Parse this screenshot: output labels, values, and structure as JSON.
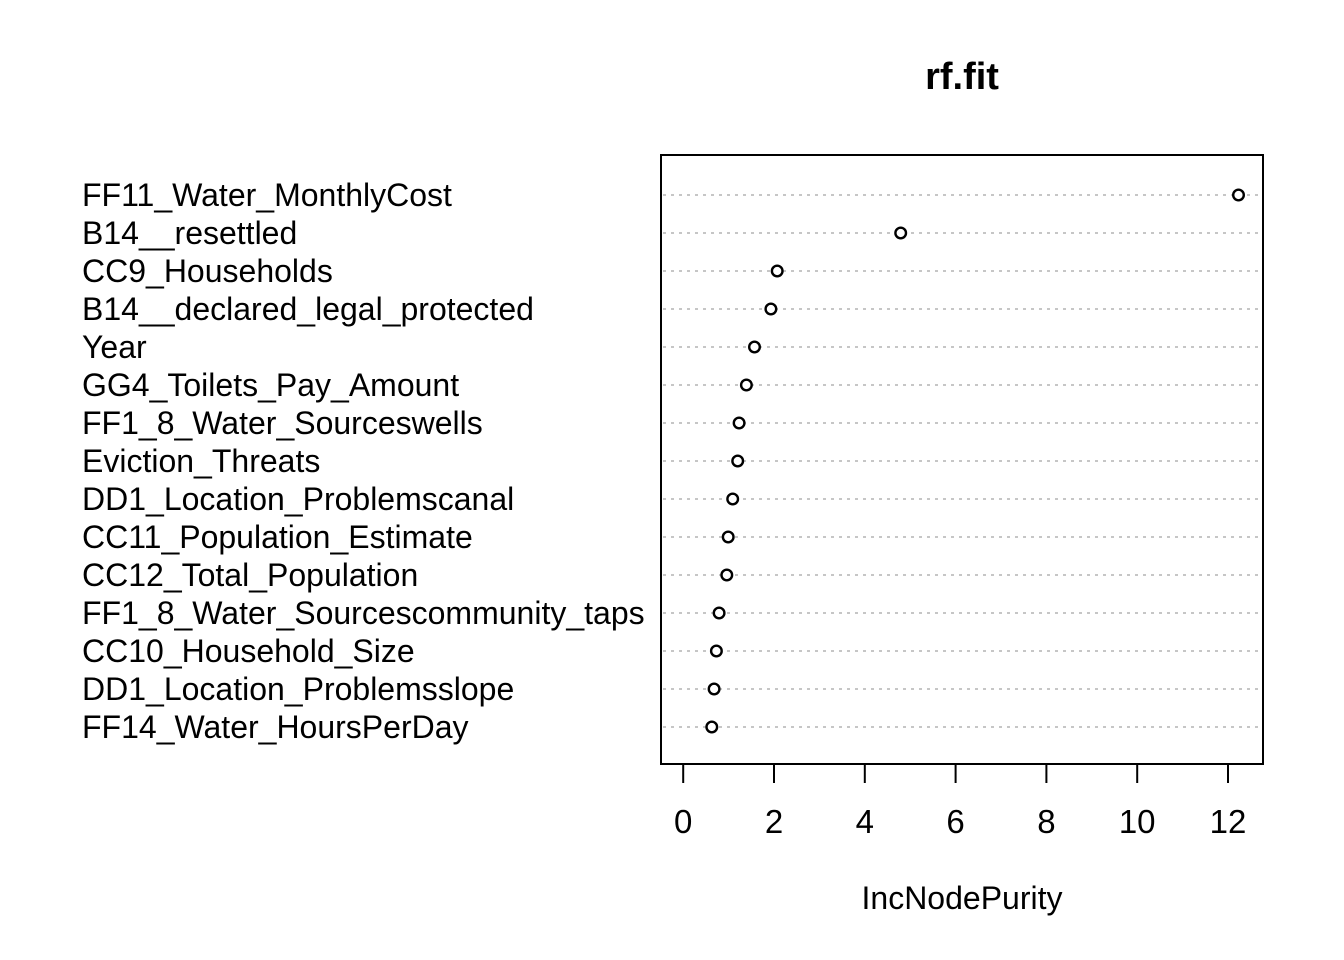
{
  "chart_data": {
    "type": "scatter",
    "variant": "dot-plot (random forest variable importance)",
    "title": "rf.fit",
    "xlabel": "IncNodePurity",
    "ylabel": "",
    "categories": [
      "FF11_Water_MonthlyCost",
      "B14__resettled",
      "CC9_Households",
      "B14__declared_legal_protected",
      "Year",
      "GG4_Toilets_Pay_Amount",
      "FF1_8_Water_Sourceswells",
      "Eviction_Threats",
      "DD1_Location_Problemscanal",
      "CC11_Population_Estimate",
      "CC12_Total_Population",
      "FF1_8_Water_Sourcescommunity_taps",
      "CC10_Household_Size",
      "DD1_Location_Problemsslope",
      "FF14_Water_HoursPerDay"
    ],
    "values": [
      12.23,
      4.79,
      2.07,
      1.93,
      1.57,
      1.39,
      1.23,
      1.2,
      1.09,
      0.99,
      0.96,
      0.79,
      0.73,
      0.68,
      0.63
    ],
    "x_ticks": [
      0,
      2,
      4,
      6,
      8,
      10,
      12
    ],
    "xlim": [
      -0.49,
      12.77
    ],
    "grid": "dotted horizontal line per category",
    "legend": "none",
    "colors": {
      "background": "#ffffff",
      "text": "#000000",
      "point_stroke": "#000000",
      "point_fill": "#ffffff",
      "grid_line": "#c6c6c6",
      "box_border": "#000000"
    }
  }
}
